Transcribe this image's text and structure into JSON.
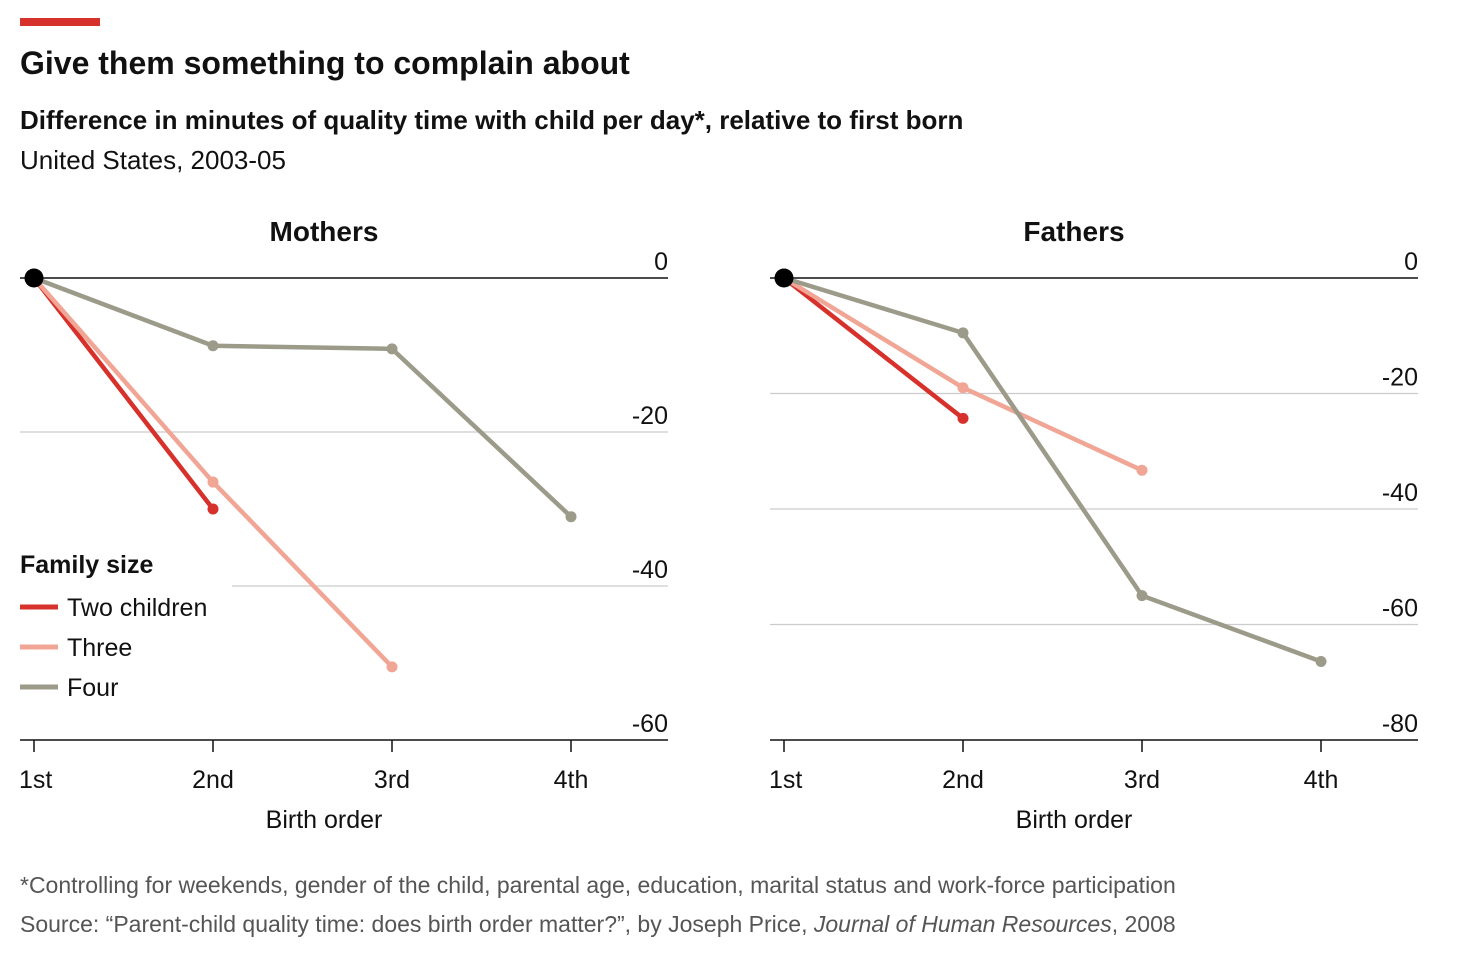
{
  "title": "Give them something to complain about",
  "subtitle": "Difference in minutes of quality time with child per day*, relative to first born",
  "subtitle2": "United States, 2003-05",
  "legend_title": "Family size",
  "footnote": "*Controlling for weekends, gender of the child, parental age, education, marital status and work-force participation",
  "source_parts": [
    "Source: “Parent-child quality time: does birth order matter?”, by Joseph Price, ",
    "Journal of Human Resources",
    ", 2008"
  ],
  "chart_data": [
    {
      "type": "line",
      "title": "Mothers",
      "xlabel": "Birth order",
      "categories": [
        "1st",
        "2nd",
        "3rd",
        "4th"
      ],
      "series": [
        {
          "name": "Two children",
          "color": "#d7312b",
          "values": [
            0,
            -30,
            null,
            null
          ]
        },
        {
          "name": "Three",
          "color": "#f0a595",
          "values": [
            0,
            -26.5,
            -50.5,
            null
          ]
        },
        {
          "name": "Four",
          "color": "#9c9b8a",
          "values": [
            0,
            -8.8,
            -9.2,
            -31
          ]
        }
      ],
      "ylim": [
        -60,
        0
      ],
      "yticks": [
        0,
        -20,
        -40,
        -60
      ],
      "grid": true
    },
    {
      "type": "line",
      "title": "Fathers",
      "xlabel": "Birth order",
      "categories": [
        "1st",
        "2nd",
        "3rd",
        "4th"
      ],
      "series": [
        {
          "color": "#d7312b",
          "values": [
            0,
            -24.3,
            null,
            null
          ]
        },
        {
          "color": "#f0a595",
          "values": [
            0,
            -19,
            -33.3,
            null
          ]
        },
        {
          "color": "#9c9b8a",
          "values": [
            0,
            -9.5,
            -55,
            -66.4
          ]
        }
      ],
      "ylim": [
        -80,
        0
      ],
      "yticks": [
        0,
        -20,
        -40,
        -60,
        -80
      ],
      "grid": true
    }
  ]
}
